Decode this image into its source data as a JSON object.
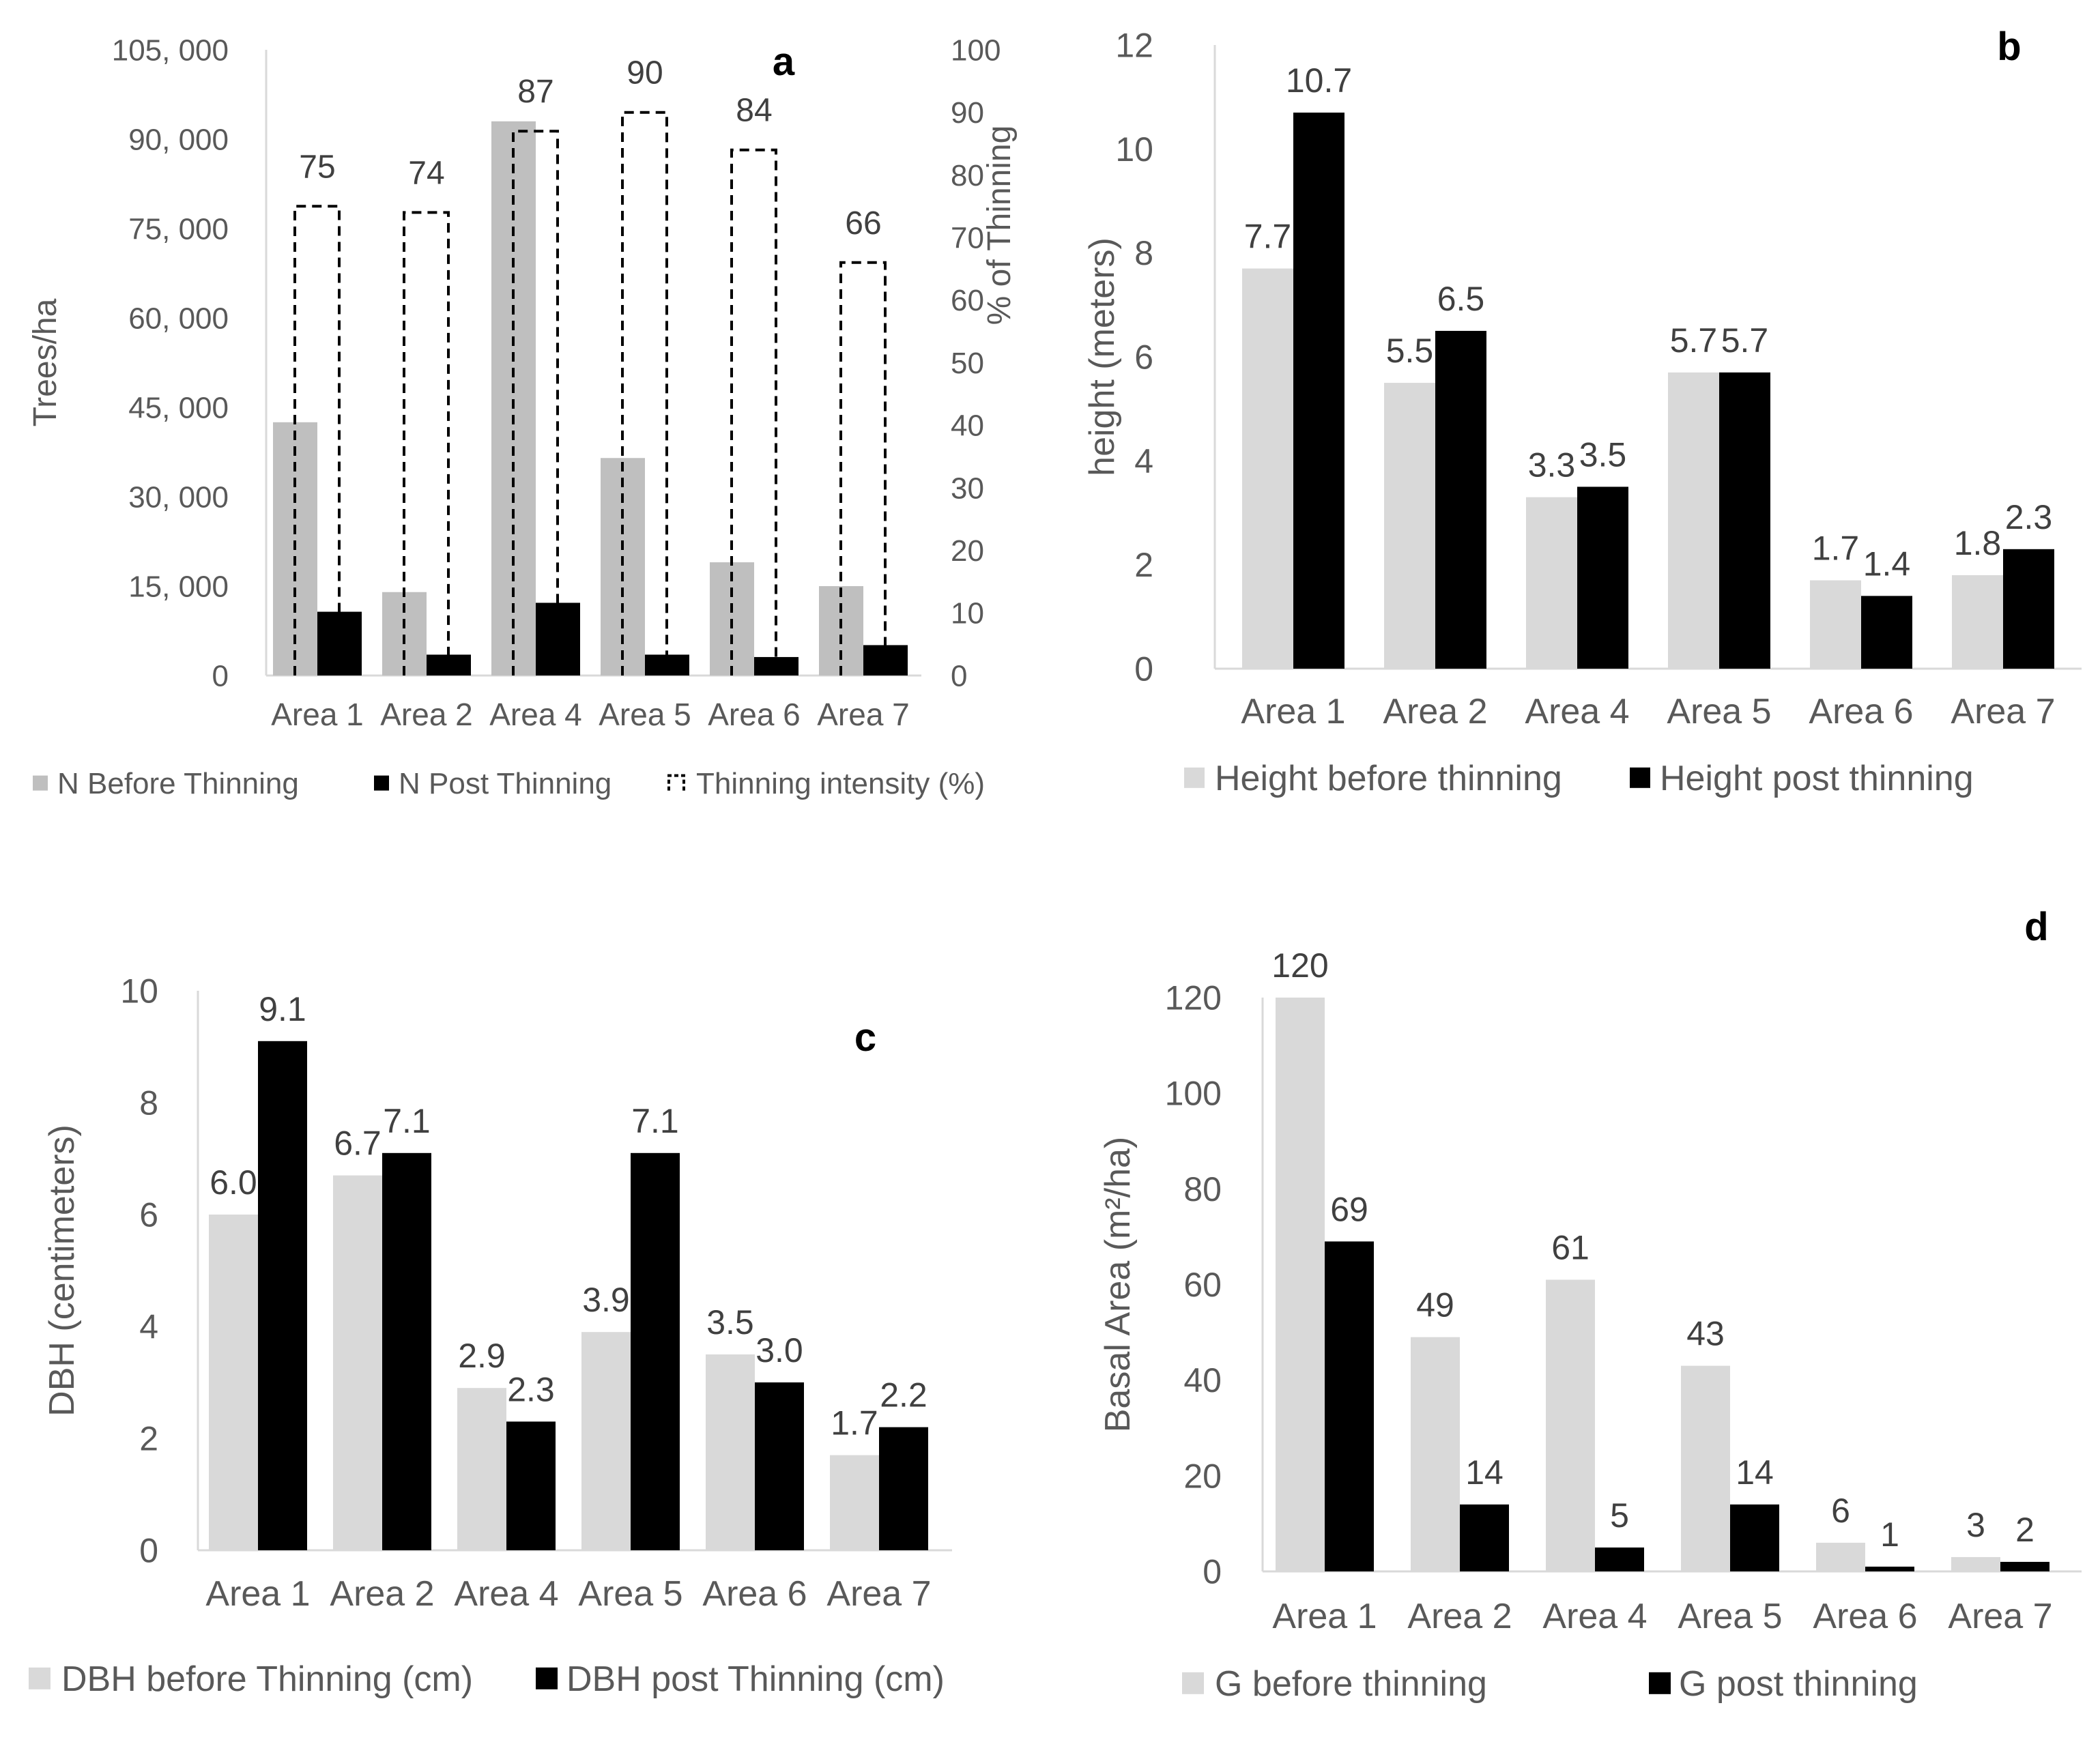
{
  "colors": {
    "before_a": "#bfbfbf",
    "before": "#d9d9d9",
    "post": "#000000",
    "axis": "#d9d9d9",
    "text": "#595959",
    "label": "#404040",
    "panel_letter": "#000000"
  },
  "chart_data": [
    {
      "panel": "a",
      "type": "bar",
      "categories": [
        "Area 1",
        "Area 2",
        "Area 4",
        "Area 5",
        "Area 6",
        "Area 7"
      ],
      "series": [
        {
          "name": "N Before Thinning",
          "axis": "left",
          "style": "solid",
          "values": [
            42500,
            14000,
            93000,
            36500,
            19000,
            15000
          ]
        },
        {
          "name": "N Post Thinning",
          "axis": "left",
          "style": "solid",
          "values": [
            10700,
            3500,
            12200,
            3500,
            3100,
            5100
          ]
        },
        {
          "name": "Thinning intensity (%)",
          "axis": "right",
          "style": "dashed-outline",
          "values": [
            75,
            74,
            87,
            90,
            84,
            66
          ],
          "data_labels": [
            "75",
            "74",
            "87",
            "90",
            "84",
            "66"
          ]
        }
      ],
      "ylabel": "Trees/ha",
      "y2label": "% of Thinning",
      "ylim": [
        0,
        105000
      ],
      "y2lim": [
        0,
        100
      ],
      "yticks": [
        0,
        15000,
        30000,
        45000,
        60000,
        75000,
        90000,
        105000
      ],
      "ytick_labels": [
        "0",
        "15, 000",
        "30, 000",
        "45, 000",
        "60, 000",
        "75, 000",
        "90, 000",
        "105, 000"
      ],
      "y2ticks": [
        0,
        10,
        20,
        30,
        40,
        50,
        60,
        70,
        80,
        90,
        100
      ],
      "y2tick_labels": [
        "0",
        "10",
        "20",
        "30",
        "40",
        "50",
        "60",
        "70",
        "80",
        "90",
        "100"
      ],
      "legend": [
        "N Before Thinning",
        "N Post Thinning",
        "Thinning intensity (%)"
      ]
    },
    {
      "panel": "b",
      "type": "bar",
      "categories": [
        "Area 1",
        "Area 2",
        "Area 4",
        "Area 5",
        "Area 6",
        "Area 7"
      ],
      "series": [
        {
          "name": "Height before thinning",
          "values": [
            7.7,
            5.5,
            3.3,
            5.7,
            1.7,
            1.8
          ],
          "data_labels": [
            "7.7",
            "5.5",
            "3.3",
            "5.7",
            "1.7",
            "1.8"
          ]
        },
        {
          "name": "Height post thinning",
          "values": [
            10.7,
            6.5,
            3.5,
            5.7,
            1.4,
            2.3
          ],
          "data_labels": [
            "10.7",
            "6.5",
            "3.5",
            "5.7",
            "1.4",
            "2.3"
          ]
        }
      ],
      "ylabel": "height (meters)",
      "ylim": [
        0,
        12
      ],
      "yticks": [
        0,
        2,
        4,
        6,
        8,
        10,
        12
      ],
      "ytick_labels": [
        "0",
        "2",
        "4",
        "6",
        "8",
        "10",
        "12"
      ],
      "legend": [
        "Height before thinning",
        "Height post thinning"
      ]
    },
    {
      "panel": "c",
      "type": "bar",
      "categories": [
        "Area 1",
        "Area 2",
        "Area 4",
        "Area 5",
        "Area 6",
        "Area 7"
      ],
      "series": [
        {
          "name": "DBH before Thinning (cm)",
          "values": [
            6.0,
            6.7,
            2.9,
            3.9,
            3.5,
            1.7
          ],
          "data_labels": [
            "6.0",
            "6.7",
            "2.9",
            "3.9",
            "3.5",
            "1.7"
          ]
        },
        {
          "name": "DBH post Thinning (cm)",
          "values": [
            9.1,
            7.1,
            2.3,
            7.1,
            3.0,
            2.2
          ],
          "data_labels": [
            "9.1",
            "7.1",
            "2.3",
            "7.1",
            "3.0",
            "2.2"
          ]
        }
      ],
      "ylabel": "DBH (centimeters)",
      "ylim": [
        0,
        10
      ],
      "yticks": [
        0,
        2,
        4,
        6,
        8,
        10
      ],
      "ytick_labels": [
        "0",
        "2",
        "4",
        "6",
        "8",
        "10"
      ],
      "legend": [
        "DBH before Thinning (cm)",
        "DBH post Thinning (cm)"
      ]
    },
    {
      "panel": "d",
      "type": "bar",
      "categories": [
        "Area 1",
        "Area 2",
        "Area 4",
        "Area 5",
        "Area 6",
        "Area 7"
      ],
      "series": [
        {
          "name": "G before thinning",
          "values": [
            120,
            49,
            61,
            43,
            6,
            3
          ],
          "data_labels": [
            "120",
            "49",
            "61",
            "43",
            "6",
            "3"
          ]
        },
        {
          "name": "G post thinning",
          "values": [
            69,
            14,
            5,
            14,
            1,
            2
          ],
          "data_labels": [
            "69",
            "14",
            "5",
            "14",
            "1",
            "2"
          ]
        }
      ],
      "ylabel": "Basal Area (m²/ha)",
      "ylim": [
        0,
        120
      ],
      "yticks": [
        0,
        20,
        40,
        60,
        80,
        100,
        120
      ],
      "ytick_labels": [
        "0",
        "20",
        "40",
        "60",
        "80",
        "100",
        "120"
      ],
      "legend": [
        "G before thinning",
        "G post thinning"
      ]
    }
  ]
}
